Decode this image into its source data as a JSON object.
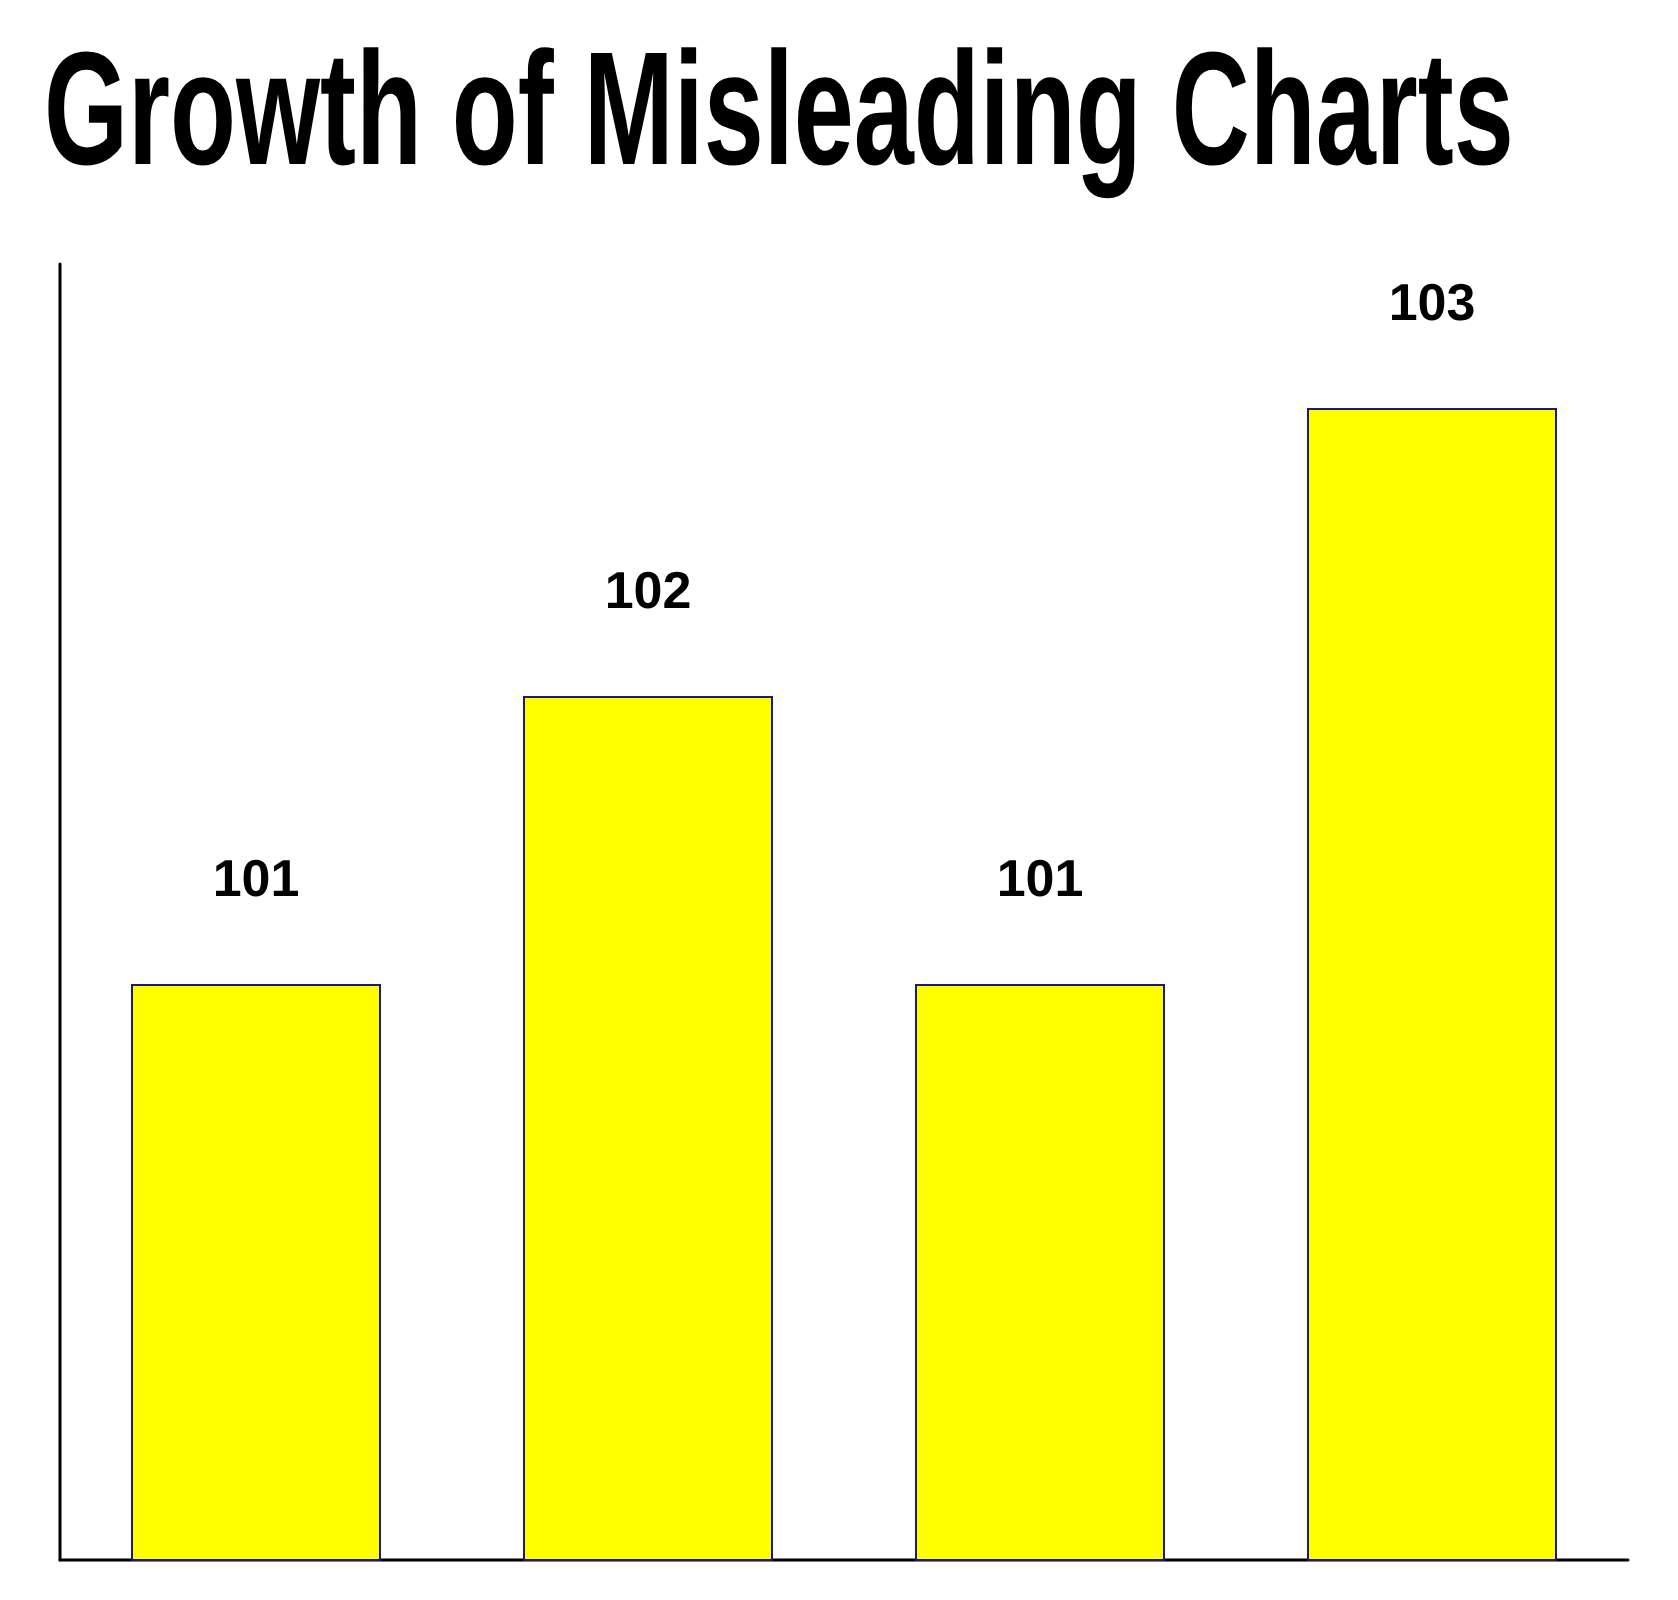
{
  "chart_data": {
    "type": "bar",
    "title": "Growth of Misleading Charts",
    "categories": [
      null,
      null,
      null,
      null
    ],
    "values": [
      101,
      102,
      101,
      103
    ],
    "data_labels": true,
    "ylim": [
      99,
      103.5
    ],
    "color": "#ffff00",
    "tick_labels": false
  }
}
